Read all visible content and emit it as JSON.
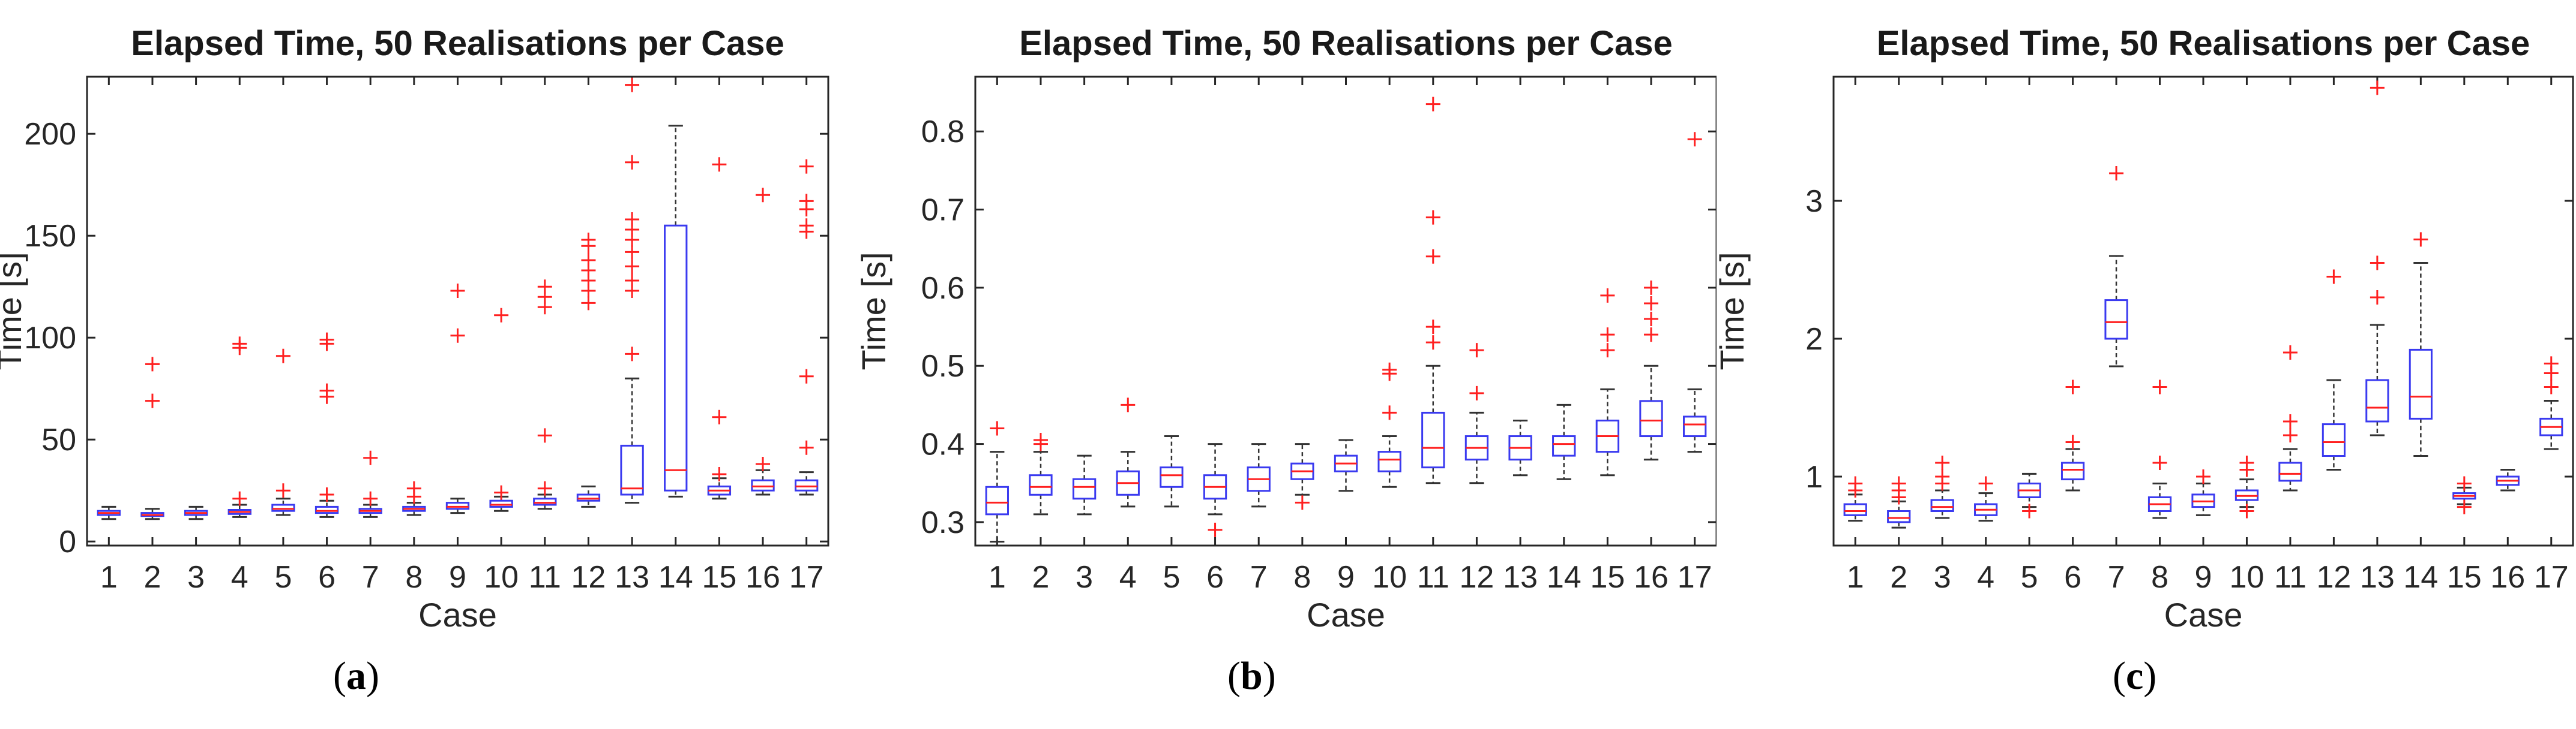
{
  "colors": {
    "box": "#3a3af0",
    "median": "#ff2020",
    "outlier": "#ff2020",
    "whisker": "#333333",
    "axis": "#262626"
  },
  "captions": [
    {
      "open": "(",
      "letter": "a",
      "close": ")"
    },
    {
      "open": "(",
      "letter": "b",
      "close": ")"
    },
    {
      "open": "(",
      "letter": "c",
      "close": ")"
    }
  ],
  "chart_data": [
    {
      "type": "boxplot",
      "title": "Elapsed Time, 50 Realisations per Case",
      "xlabel": "Case",
      "ylabel": "Time [s]",
      "ylim": [
        -2,
        228
      ],
      "yticks": [
        0,
        50,
        100,
        150,
        200
      ],
      "yticklabels": [
        "0",
        "50",
        "100",
        "150",
        "200"
      ],
      "categories": [
        "1",
        "2",
        "3",
        "4",
        "5",
        "6",
        "7",
        "8",
        "9",
        "10",
        "11",
        "12",
        "13",
        "14",
        "15",
        "16",
        "17"
      ],
      "boxes": [
        {
          "wlo": 11,
          "q1": 13,
          "med": 14,
          "q3": 15,
          "whi": 17,
          "out": []
        },
        {
          "wlo": 11,
          "q1": 12.5,
          "med": 13,
          "q3": 14,
          "whi": 16,
          "out": [
            69,
            87
          ]
        },
        {
          "wlo": 11,
          "q1": 13,
          "med": 14,
          "q3": 15,
          "whi": 17,
          "out": []
        },
        {
          "wlo": 12,
          "q1": 13.5,
          "med": 14.5,
          "q3": 15.5,
          "whi": 18,
          "out": [
            21,
            95,
            97
          ]
        },
        {
          "wlo": 13,
          "q1": 15,
          "med": 16,
          "q3": 18,
          "whi": 21,
          "out": [
            25,
            91
          ]
        },
        {
          "wlo": 12,
          "q1": 14,
          "med": 15,
          "q3": 17,
          "whi": 20,
          "out": [
            23,
            71,
            74,
            97,
            99
          ]
        },
        {
          "wlo": 12,
          "q1": 14,
          "med": 15,
          "q3": 16,
          "whi": 18,
          "out": [
            21,
            41
          ]
        },
        {
          "wlo": 13,
          "q1": 15,
          "med": 16,
          "q3": 17,
          "whi": 19,
          "out": [
            22,
            26
          ]
        },
        {
          "wlo": 14,
          "q1": 16,
          "med": 17,
          "q3": 19,
          "whi": 21,
          "out": [
            101,
            123
          ]
        },
        {
          "wlo": 15,
          "q1": 17,
          "med": 18,
          "q3": 20,
          "whi": 22,
          "out": [
            24,
            111
          ]
        },
        {
          "wlo": 16,
          "q1": 18,
          "med": 19,
          "q3": 21,
          "whi": 23,
          "out": [
            26,
            52,
            115,
            120,
            125
          ]
        },
        {
          "wlo": 17,
          "q1": 20,
          "med": 21,
          "q3": 23,
          "whi": 27,
          "out": [
            117,
            123,
            128,
            133,
            138,
            145,
            148
          ]
        },
        {
          "wlo": 19,
          "q1": 23,
          "med": 26,
          "q3": 47,
          "whi": 80,
          "out": [
            92,
            123,
            128,
            135,
            142,
            148,
            153,
            158,
            186,
            224
          ]
        },
        {
          "wlo": 22,
          "q1": 25,
          "med": 35,
          "q3": 155,
          "whi": 204,
          "out": []
        },
        {
          "wlo": 21,
          "q1": 23,
          "med": 25,
          "q3": 27,
          "whi": 31,
          "out": [
            33,
            61,
            185
          ]
        },
        {
          "wlo": 23,
          "q1": 25,
          "med": 27,
          "q3": 30,
          "whi": 35,
          "out": [
            38,
            170
          ]
        },
        {
          "wlo": 23,
          "q1": 25,
          "med": 27,
          "q3": 30,
          "whi": 34,
          "out": [
            46,
            81,
            152,
            155,
            163,
            167,
            184
          ]
        }
      ]
    },
    {
      "type": "boxplot",
      "title": "Elapsed Time, 50 Realisations per Case",
      "xlabel": "Case",
      "ylabel": "Time [s]",
      "ylim": [
        0.27,
        0.87
      ],
      "yticks": [
        0.3,
        0.4,
        0.5,
        0.6,
        0.7,
        0.8
      ],
      "yticklabels": [
        "0.3",
        "0.4",
        "0.5",
        "0.6",
        "0.7",
        "0.8"
      ],
      "categories": [
        "1",
        "2",
        "3",
        "4",
        "5",
        "6",
        "7",
        "8",
        "9",
        "10",
        "11",
        "12",
        "13",
        "14",
        "15",
        "16",
        "17"
      ],
      "boxes": [
        {
          "wlo": 0.275,
          "q1": 0.31,
          "med": 0.325,
          "q3": 0.345,
          "whi": 0.39,
          "out": [
            0.42
          ]
        },
        {
          "wlo": 0.31,
          "q1": 0.335,
          "med": 0.345,
          "q3": 0.36,
          "whi": 0.39,
          "out": [
            0.4,
            0.405
          ]
        },
        {
          "wlo": 0.31,
          "q1": 0.33,
          "med": 0.345,
          "q3": 0.355,
          "whi": 0.385,
          "out": []
        },
        {
          "wlo": 0.32,
          "q1": 0.335,
          "med": 0.35,
          "q3": 0.365,
          "whi": 0.39,
          "out": [
            0.45
          ]
        },
        {
          "wlo": 0.32,
          "q1": 0.345,
          "med": 0.36,
          "q3": 0.37,
          "whi": 0.41,
          "out": []
        },
        {
          "wlo": 0.31,
          "q1": 0.33,
          "med": 0.345,
          "q3": 0.36,
          "whi": 0.4,
          "out": [
            0.29
          ]
        },
        {
          "wlo": 0.32,
          "q1": 0.34,
          "med": 0.355,
          "q3": 0.37,
          "whi": 0.4,
          "out": []
        },
        {
          "wlo": 0.335,
          "q1": 0.355,
          "med": 0.365,
          "q3": 0.375,
          "whi": 0.4,
          "out": [
            0.325
          ]
        },
        {
          "wlo": 0.34,
          "q1": 0.365,
          "med": 0.375,
          "q3": 0.385,
          "whi": 0.405,
          "out": []
        },
        {
          "wlo": 0.345,
          "q1": 0.365,
          "med": 0.38,
          "q3": 0.39,
          "whi": 0.41,
          "out": [
            0.44,
            0.49,
            0.495
          ]
        },
        {
          "wlo": 0.35,
          "q1": 0.37,
          "med": 0.395,
          "q3": 0.44,
          "whi": 0.5,
          "out": [
            0.53,
            0.55,
            0.64,
            0.69,
            0.835
          ]
        },
        {
          "wlo": 0.35,
          "q1": 0.38,
          "med": 0.395,
          "q3": 0.41,
          "whi": 0.44,
          "out": [
            0.465,
            0.52
          ]
        },
        {
          "wlo": 0.36,
          "q1": 0.38,
          "med": 0.395,
          "q3": 0.41,
          "whi": 0.43,
          "out": []
        },
        {
          "wlo": 0.355,
          "q1": 0.385,
          "med": 0.4,
          "q3": 0.41,
          "whi": 0.45,
          "out": []
        },
        {
          "wlo": 0.36,
          "q1": 0.39,
          "med": 0.41,
          "q3": 0.43,
          "whi": 0.47,
          "out": [
            0.52,
            0.54,
            0.59
          ]
        },
        {
          "wlo": 0.38,
          "q1": 0.41,
          "med": 0.43,
          "q3": 0.455,
          "whi": 0.5,
          "out": [
            0.54,
            0.56,
            0.58,
            0.6
          ]
        },
        {
          "wlo": 0.39,
          "q1": 0.41,
          "med": 0.425,
          "q3": 0.435,
          "whi": 0.47,
          "out": [
            0.79
          ]
        }
      ]
    },
    {
      "type": "boxplot",
      "title": "Elapsed Time, 50 Realisations per Case",
      "xlabel": "Case",
      "ylabel": "Time [s]",
      "ylim": [
        0.5,
        3.9
      ],
      "yticks": [
        1,
        2,
        3
      ],
      "yticklabels": [
        "1",
        "2",
        "3"
      ],
      "categories": [
        "1",
        "2",
        "3",
        "4",
        "5",
        "6",
        "7",
        "8",
        "9",
        "10",
        "11",
        "12",
        "13",
        "14",
        "15",
        "16",
        "17"
      ],
      "boxes": [
        {
          "wlo": 0.68,
          "q1": 0.72,
          "med": 0.75,
          "q3": 0.8,
          "whi": 0.87,
          "out": [
            0.9,
            0.95
          ]
        },
        {
          "wlo": 0.63,
          "q1": 0.67,
          "med": 0.7,
          "q3": 0.75,
          "whi": 0.82,
          "out": [
            0.85,
            0.9,
            0.95
          ]
        },
        {
          "wlo": 0.7,
          "q1": 0.75,
          "med": 0.78,
          "q3": 0.83,
          "whi": 0.9,
          "out": [
            0.95,
            1.0,
            1.1
          ]
        },
        {
          "wlo": 0.68,
          "q1": 0.72,
          "med": 0.76,
          "q3": 0.8,
          "whi": 0.88,
          "out": [
            0.95
          ]
        },
        {
          "wlo": 0.78,
          "q1": 0.85,
          "med": 0.9,
          "q3": 0.95,
          "whi": 1.02,
          "out": [
            0.75
          ]
        },
        {
          "wlo": 0.9,
          "q1": 0.98,
          "med": 1.05,
          "q3": 1.1,
          "whi": 1.2,
          "out": [
            1.25,
            1.65
          ]
        },
        {
          "wlo": 1.8,
          "q1": 2.0,
          "med": 2.12,
          "q3": 2.28,
          "whi": 2.6,
          "out": [
            3.2
          ]
        },
        {
          "wlo": 0.7,
          "q1": 0.75,
          "med": 0.8,
          "q3": 0.85,
          "whi": 0.95,
          "out": [
            1.1,
            1.65
          ]
        },
        {
          "wlo": 0.72,
          "q1": 0.78,
          "med": 0.82,
          "q3": 0.87,
          "whi": 0.95,
          "out": [
            1.0
          ]
        },
        {
          "wlo": 0.78,
          "q1": 0.83,
          "med": 0.86,
          "q3": 0.9,
          "whi": 0.98,
          "out": [
            0.75,
            1.05,
            1.1
          ]
        },
        {
          "wlo": 0.9,
          "q1": 0.97,
          "med": 1.02,
          "q3": 1.1,
          "whi": 1.2,
          "out": [
            1.3,
            1.4,
            1.9
          ]
        },
        {
          "wlo": 1.05,
          "q1": 1.15,
          "med": 1.25,
          "q3": 1.38,
          "whi": 1.7,
          "out": [
            2.45
          ]
        },
        {
          "wlo": 1.3,
          "q1": 1.4,
          "med": 1.5,
          "q3": 1.7,
          "whi": 2.1,
          "out": [
            2.3,
            2.55,
            3.82
          ]
        },
        {
          "wlo": 1.15,
          "q1": 1.42,
          "med": 1.58,
          "q3": 1.92,
          "whi": 2.55,
          "out": [
            2.72
          ]
        },
        {
          "wlo": 0.8,
          "q1": 0.84,
          "med": 0.86,
          "q3": 0.88,
          "whi": 0.92,
          "out": [
            0.78,
            0.95
          ]
        },
        {
          "wlo": 0.9,
          "q1": 0.94,
          "med": 0.97,
          "q3": 1.0,
          "whi": 1.05,
          "out": []
        },
        {
          "wlo": 1.2,
          "q1": 1.3,
          "med": 1.36,
          "q3": 1.42,
          "whi": 1.55,
          "out": [
            1.65,
            1.75,
            1.82
          ]
        }
      ]
    }
  ]
}
